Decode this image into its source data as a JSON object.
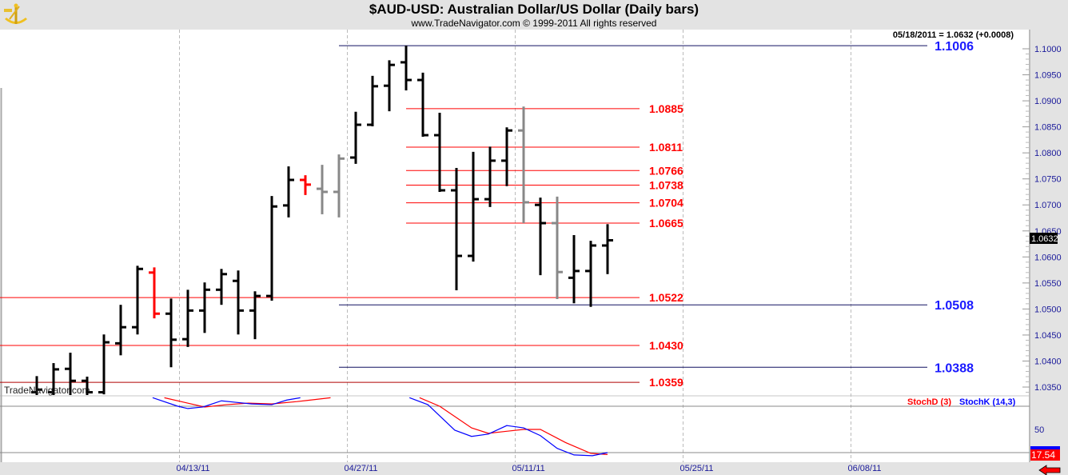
{
  "header": {
    "title": "$AUD-USD:  Australian Dollar/US Dollar  (Daily bars)",
    "subtitle": "www.TradeNavigator.com © 1999-2011 All rights reserved",
    "logo": "sextant-logo-icon"
  },
  "status_line": "05/18/2011 = 1.0632 (+0.0008)",
  "watermark": "TradeNavigator.com",
  "current_price_label": "1.0632",
  "stoch_current_label": "17.54",
  "stoch_legend": {
    "d_label": "StochD (3)",
    "k_label": "StochK (14,3)"
  },
  "colors": {
    "up": "#000000",
    "reversal": "#ff0000",
    "inside": "#888888",
    "fib": "#ff0000",
    "swing": "#0000cc",
    "stochD": "#ff0000",
    "stochK": "#0000ff"
  },
  "chart_data": {
    "type": "ohlc",
    "title": "$AUD-USD: Australian Dollar/US Dollar (Daily bars)",
    "ylim": [
      1.033,
      1.104
    ],
    "y_ticks": [
      "1.1000",
      "1.0950",
      "1.0900",
      "1.0850",
      "1.0800",
      "1.0750",
      "1.0700",
      "1.0650",
      "1.0600",
      "1.0550",
      "1.0500",
      "1.0450",
      "1.0400",
      "1.0350"
    ],
    "x_ticks": [
      {
        "label": "04/13/11",
        "bar": 8.5
      },
      {
        "label": "04/27/11",
        "bar": 18.5
      },
      {
        "label": "05/11/11",
        "bar": 28.5
      },
      {
        "label": "05/25/11",
        "bar": 38.5
      },
      {
        "label": "06/08/11",
        "bar": 48.5
      }
    ],
    "bars": [
      {
        "o": 1.034,
        "h": 1.0371,
        "l": 1.033,
        "c": 1.0345,
        "color": "up"
      },
      {
        "o": 1.034,
        "h": 1.0396,
        "l": 1.033,
        "c": 1.0384,
        "color": "up"
      },
      {
        "o": 1.0385,
        "h": 1.0416,
        "l": 1.033,
        "c": 1.0362,
        "color": "up"
      },
      {
        "o": 1.0362,
        "h": 1.037,
        "l": 1.033,
        "c": 1.034,
        "color": "up"
      },
      {
        "o": 1.034,
        "h": 1.0451,
        "l": 1.0336,
        "c": 1.0436,
        "color": "up"
      },
      {
        "o": 1.0434,
        "h": 1.0508,
        "l": 1.0411,
        "c": 1.0465,
        "color": "up"
      },
      {
        "o": 1.0465,
        "h": 1.0583,
        "l": 1.0451,
        "c": 1.0577,
        "color": "up"
      },
      {
        "o": 1.057,
        "h": 1.058,
        "l": 1.0482,
        "c": 1.0491,
        "color": "reversal"
      },
      {
        "o": 1.0491,
        "h": 1.052,
        "l": 1.0388,
        "c": 1.0441,
        "color": "up"
      },
      {
        "o": 1.0442,
        "h": 1.0537,
        "l": 1.0427,
        "c": 1.0497,
        "color": "up"
      },
      {
        "o": 1.0497,
        "h": 1.0551,
        "l": 1.0454,
        "c": 1.0537,
        "color": "up"
      },
      {
        "o": 1.0537,
        "h": 1.0577,
        "l": 1.0508,
        "c": 1.0567,
        "color": "up"
      },
      {
        "o": 1.0554,
        "h": 1.0574,
        "l": 1.0451,
        "c": 1.0497,
        "color": "up"
      },
      {
        "o": 1.0497,
        "h": 1.0534,
        "l": 1.0442,
        "c": 1.0525,
        "color": "up"
      },
      {
        "o": 1.0525,
        "h": 1.0717,
        "l": 1.0516,
        "c": 1.0697,
        "color": "up"
      },
      {
        "o": 1.0699,
        "h": 1.0774,
        "l": 1.0676,
        "c": 1.0748,
        "color": "up"
      },
      {
        "o": 1.0748,
        "h": 1.0757,
        "l": 1.0719,
        "c": 1.0739,
        "color": "reversal"
      },
      {
        "o": 1.0731,
        "h": 1.0777,
        "l": 1.0682,
        "c": 1.0725,
        "color": "inside"
      },
      {
        "o": 1.0725,
        "h": 1.0797,
        "l": 1.0676,
        "c": 1.0789,
        "color": "inside"
      },
      {
        "o": 1.0791,
        "h": 1.0879,
        "l": 1.0779,
        "c": 1.0854,
        "color": "up"
      },
      {
        "o": 1.0854,
        "h": 1.0948,
        "l": 1.0851,
        "c": 1.0928,
        "color": "up"
      },
      {
        "o": 1.0929,
        "h": 1.0978,
        "l": 1.088,
        "c": 1.0969,
        "color": "up"
      },
      {
        "o": 1.0974,
        "h": 1.1006,
        "l": 1.092,
        "c": 1.094,
        "color": "up"
      },
      {
        "o": 1.094,
        "h": 1.0954,
        "l": 1.0831,
        "c": 1.0834,
        "color": "up"
      },
      {
        "o": 1.0834,
        "h": 1.0877,
        "l": 1.0725,
        "c": 1.0728,
        "color": "up"
      },
      {
        "o": 1.0728,
        "h": 1.0771,
        "l": 1.0536,
        "c": 1.0602,
        "color": "up"
      },
      {
        "o": 1.0602,
        "h": 1.0802,
        "l": 1.0591,
        "c": 1.0711,
        "color": "up"
      },
      {
        "o": 1.0711,
        "h": 1.0812,
        "l": 1.0696,
        "c": 1.0785,
        "color": "up"
      },
      {
        "o": 1.0785,
        "h": 1.0849,
        "l": 1.0736,
        "c": 1.0843,
        "color": "up"
      },
      {
        "o": 1.0843,
        "h": 1.0889,
        "l": 1.0665,
        "c": 1.0705,
        "color": "inside"
      },
      {
        "o": 1.07,
        "h": 1.0714,
        "l": 1.0565,
        "c": 1.0665,
        "color": "up"
      },
      {
        "o": 1.0665,
        "h": 1.0716,
        "l": 1.0519,
        "c": 1.0571,
        "color": "inside"
      },
      {
        "o": 1.056,
        "h": 1.0642,
        "l": 1.0511,
        "c": 1.0573,
        "color": "up"
      },
      {
        "o": 1.0573,
        "h": 1.0631,
        "l": 1.0504,
        "c": 1.0622,
        "color": "up"
      },
      {
        "o": 1.0622,
        "h": 1.0663,
        "l": 1.0567,
        "c": 1.0632,
        "color": "up"
      }
    ],
    "levels": [
      {
        "value": 1.1006,
        "label": "1.1006",
        "kind": "swing",
        "from_bar": 18
      },
      {
        "value": 1.0508,
        "label": "1.0508",
        "kind": "swing",
        "from_bar": 18
      },
      {
        "value": 1.0388,
        "label": "1.0388",
        "kind": "swing",
        "from_bar": 18
      },
      {
        "value": 1.0885,
        "label": "1.0885",
        "kind": "fib",
        "from_bar": 22
      },
      {
        "value": 1.0811,
        "label": "1.0811",
        "kind": "fib",
        "from_bar": 22
      },
      {
        "value": 1.0766,
        "label": "1.0766",
        "kind": "fib",
        "from_bar": 22
      },
      {
        "value": 1.0738,
        "label": "1.0738",
        "kind": "fib",
        "from_bar": 22
      },
      {
        "value": 1.0704,
        "label": "1.0704",
        "kind": "fib",
        "from_bar": 22
      },
      {
        "value": 1.0665,
        "label": "1.0665",
        "kind": "fib",
        "from_bar": 22
      },
      {
        "value": 1.0522,
        "label": "1.0522",
        "kind": "fib",
        "from_bar": -3
      },
      {
        "value": 1.043,
        "label": "1.0430",
        "kind": "fib",
        "from_bar": -3
      },
      {
        "value": 1.0359,
        "label": "1.0359",
        "kind": "fib",
        "from_bar": -3
      }
    ],
    "stochastic": {
      "ylim": [
        20,
        80
      ],
      "y_tick": "50",
      "k_segments": [
        [
          [
            6.9,
            91
          ],
          [
            8.4,
            80
          ],
          [
            9,
            77
          ],
          [
            9.9,
            79
          ],
          [
            11,
            87
          ],
          [
            11.9,
            85
          ],
          [
            12.8,
            83
          ],
          [
            14,
            82
          ],
          [
            14.9,
            88
          ],
          [
            15.7,
            91
          ]
        ],
        [
          [
            22.2,
            91
          ],
          [
            23.3,
            82
          ],
          [
            24.9,
            49
          ],
          [
            25.9,
            41
          ],
          [
            26.9,
            44
          ],
          [
            28,
            55
          ],
          [
            29,
            52
          ],
          [
            30,
            42
          ],
          [
            31,
            25.5
          ],
          [
            32,
            17
          ],
          [
            33.1,
            16
          ],
          [
            34,
            20
          ]
        ]
      ],
      "d_segments": [
        [
          [
            7.6,
            91
          ],
          [
            8.8,
            85
          ],
          [
            10,
            79
          ],
          [
            11.3,
            82
          ],
          [
            12.6,
            84
          ],
          [
            14,
            83
          ],
          [
            15.5,
            86
          ],
          [
            17.5,
            91
          ]
        ],
        [
          [
            22.8,
            91
          ],
          [
            24,
            80
          ],
          [
            25.9,
            52
          ],
          [
            26.9,
            45
          ],
          [
            29,
            50
          ],
          [
            30,
            50
          ],
          [
            31.5,
            33
          ],
          [
            33,
            19
          ],
          [
            34,
            17.54
          ]
        ]
      ]
    }
  }
}
